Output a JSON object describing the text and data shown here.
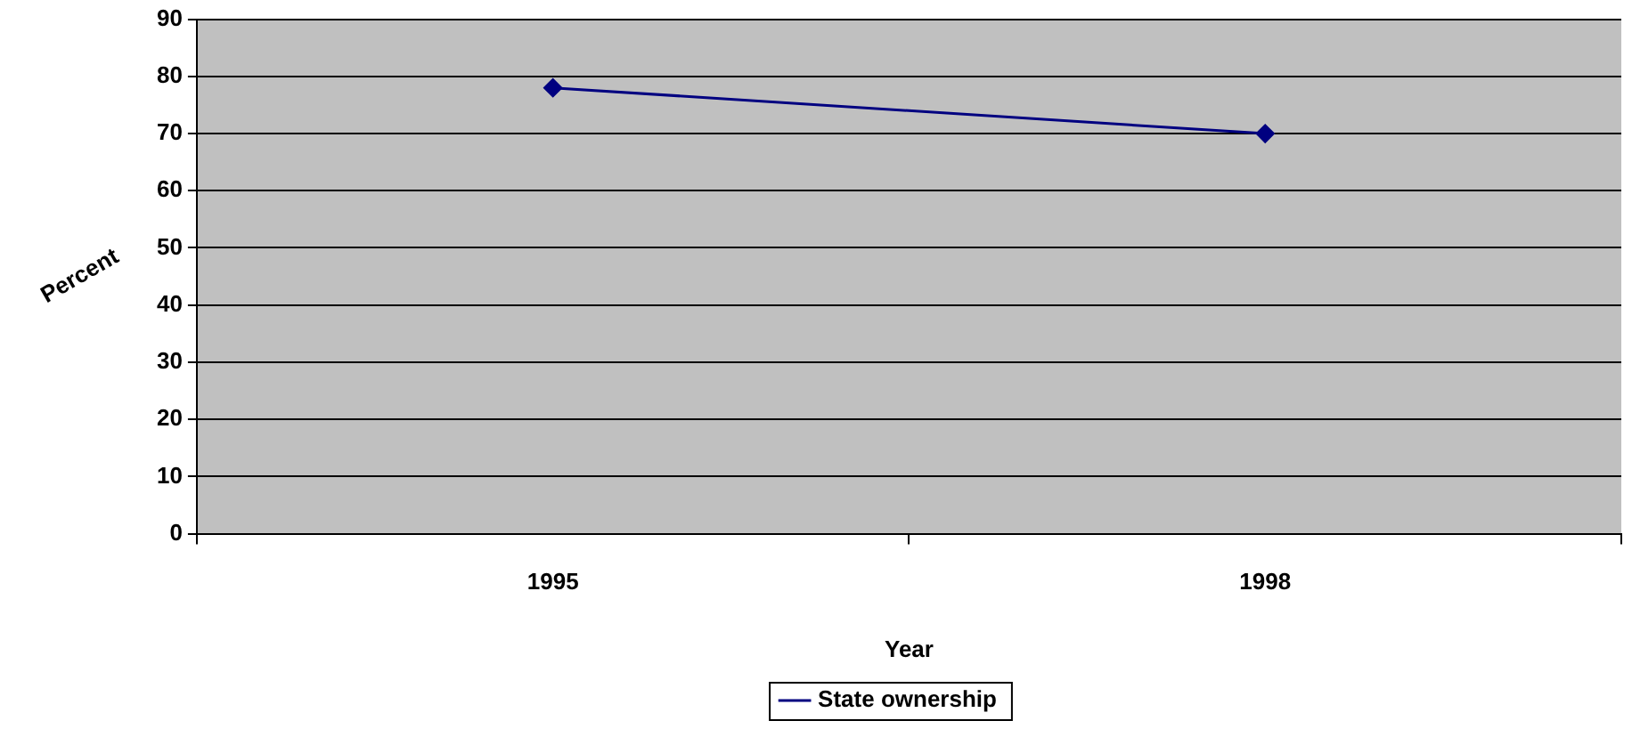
{
  "chart_data": {
    "type": "line",
    "xlabel": "Year",
    "ylabel": "Percent",
    "categories": [
      "1995",
      "1998"
    ],
    "series": [
      {
        "name": "State ownership",
        "color": "#000080",
        "values": [
          78,
          70
        ]
      }
    ],
    "ylim": [
      0,
      90
    ],
    "yticks": [
      0,
      10,
      20,
      30,
      40,
      50,
      60,
      70,
      80,
      90
    ],
    "grid": "y",
    "legend": "bottom",
    "marker": "diamond",
    "line_style": "solid"
  }
}
